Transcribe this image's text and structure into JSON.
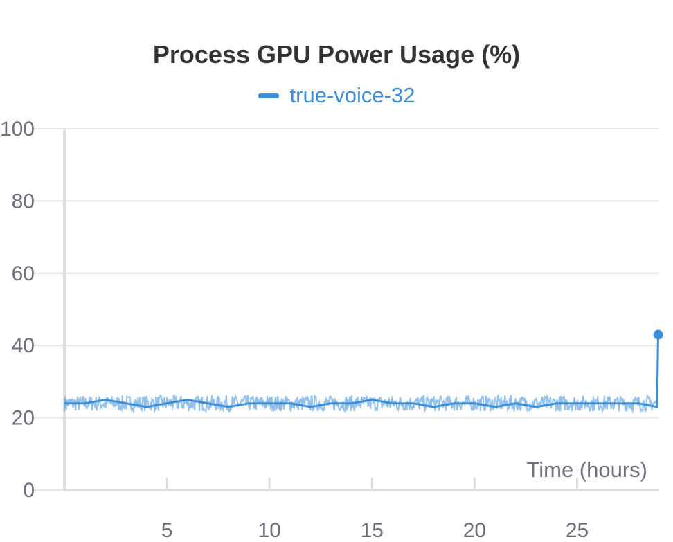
{
  "chart_data": {
    "type": "line",
    "title": "Process GPU Power Usage (%)",
    "xlabel": "Time (hours)",
    "ylabel": "",
    "xlim": [
      0,
      29
    ],
    "ylim": [
      0,
      100
    ],
    "xticks": [
      5,
      10,
      15,
      20,
      25
    ],
    "yticks": [
      0,
      20,
      40,
      60,
      80,
      100
    ],
    "grid": true,
    "legend_position": "top-center",
    "series": [
      {
        "name": "true-voice-32",
        "color": "#3b8ed8",
        "baseline_mean": 24,
        "baseline_range": [
          21,
          27
        ],
        "x": [
          0.0,
          1.0,
          2.0,
          3.0,
          4.0,
          5.0,
          6.0,
          7.0,
          8.0,
          9.0,
          10.0,
          11.0,
          12.0,
          13.0,
          14.0,
          15.0,
          16.0,
          17.0,
          18.0,
          19.0,
          20.0,
          21.0,
          22.0,
          23.0,
          24.0,
          25.0,
          26.0,
          27.0,
          28.0,
          28.9,
          28.95
        ],
        "values": [
          24,
          24,
          25,
          24,
          23,
          24,
          25,
          24,
          23,
          24,
          24,
          24,
          23,
          24,
          24,
          25,
          24,
          24,
          23,
          24,
          24,
          23,
          24,
          23,
          24,
          24,
          24,
          24,
          24,
          23,
          43
        ]
      }
    ]
  }
}
